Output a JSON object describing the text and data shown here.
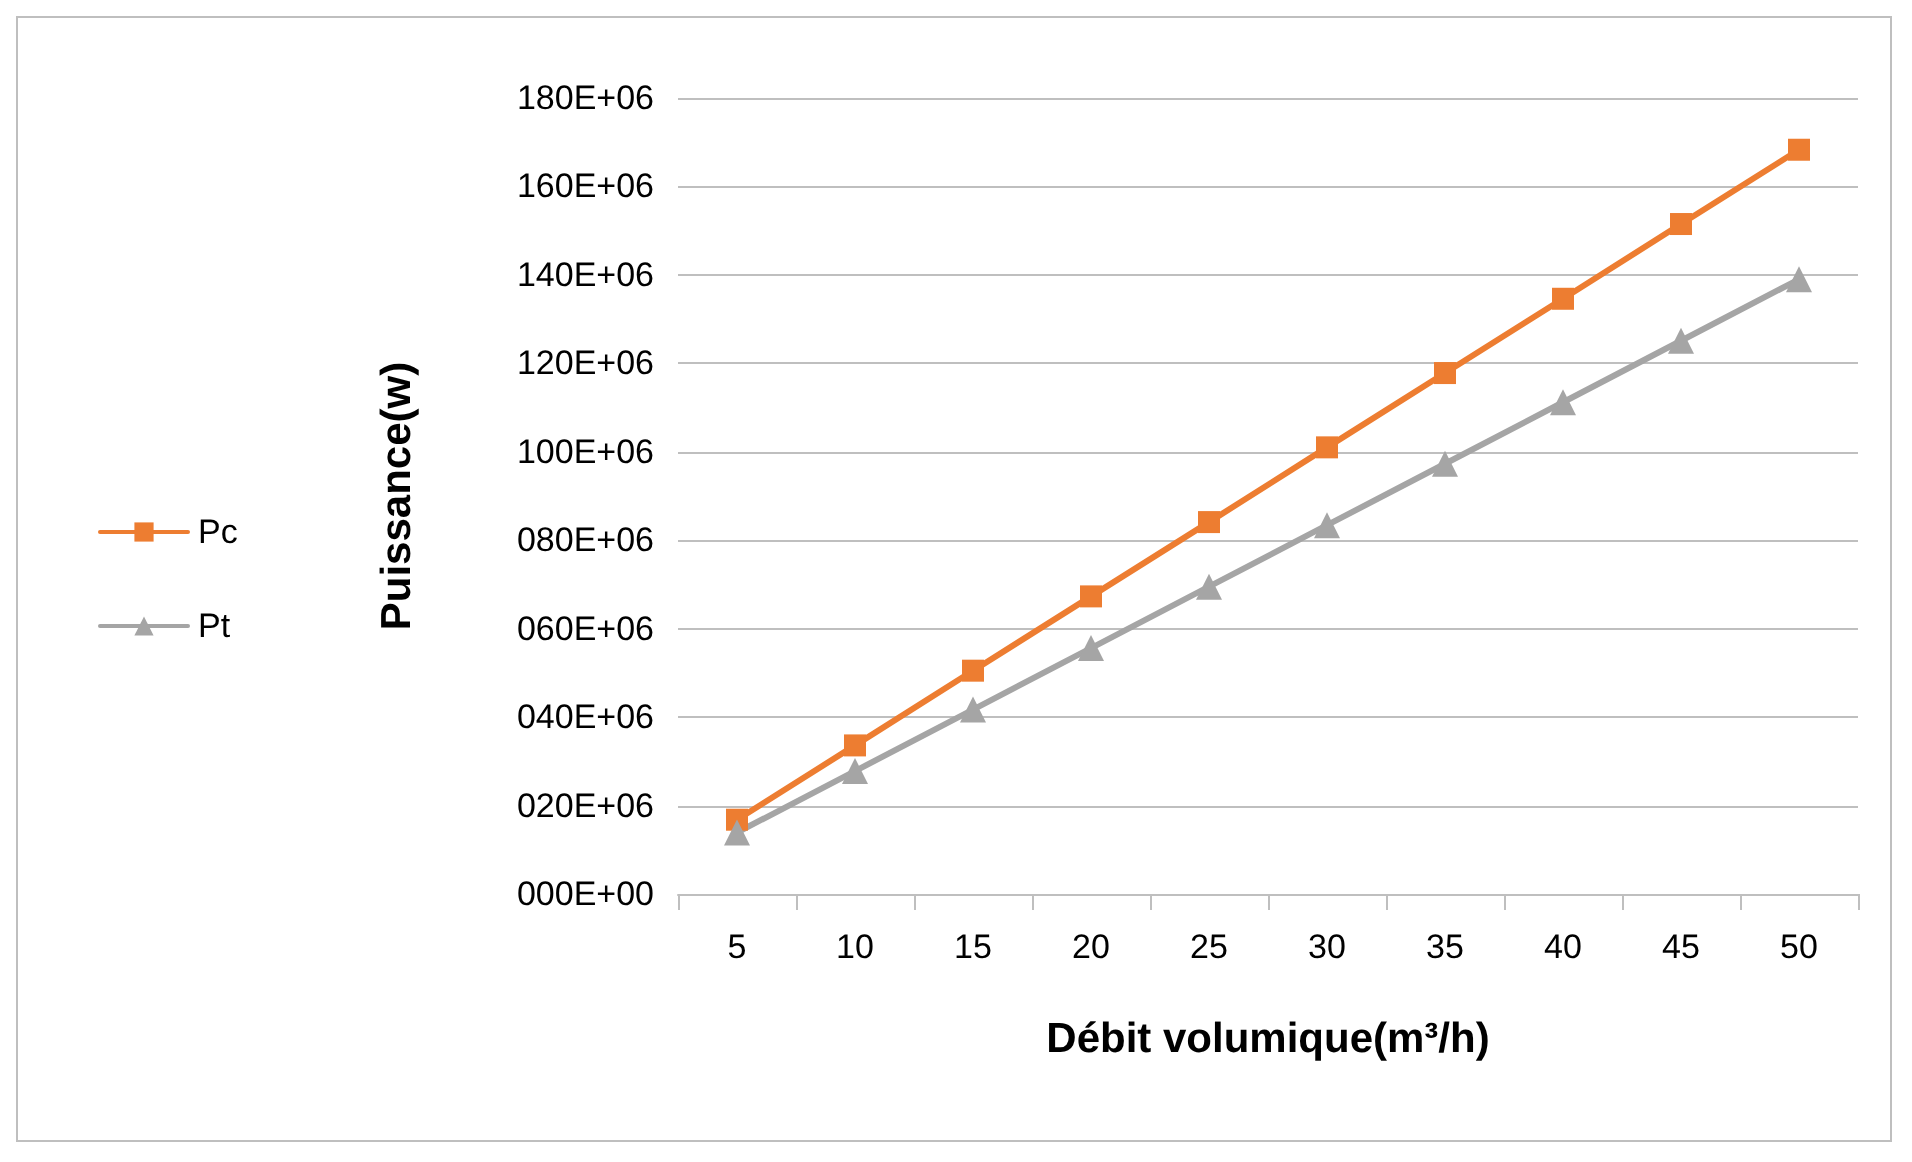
{
  "chart_data": {
    "type": "line",
    "xlabel": "Débit volumique(m³/h)",
    "ylabel": "Puissance(w)",
    "categories": [
      "5",
      "10",
      "15",
      "20",
      "25",
      "30",
      "35",
      "40",
      "45",
      "50"
    ],
    "series": [
      {
        "name": "Pc",
        "color": "#ed7d31",
        "marker": "square",
        "values": [
          16800000,
          33600000,
          50500000,
          67300000,
          84100000,
          101000000,
          117800000,
          134600000,
          151500000,
          168300000
        ]
      },
      {
        "name": "Pt",
        "color": "#a5a5a5",
        "marker": "triangle",
        "values": [
          13900000,
          27800000,
          41700000,
          55600000,
          69500000,
          83400000,
          97300000,
          111200000,
          125100000,
          139000000
        ]
      }
    ],
    "ylim": [
      0,
      180000000
    ],
    "yticks": [
      {
        "value": 0,
        "label": "000E+00"
      },
      {
        "value": 20000000,
        "label": "020E+06"
      },
      {
        "value": 40000000,
        "label": "040E+06"
      },
      {
        "value": 60000000,
        "label": "060E+06"
      },
      {
        "value": 80000000,
        "label": "080E+06"
      },
      {
        "value": 100000000,
        "label": "100E+06"
      },
      {
        "value": 120000000,
        "label": "120E+06"
      },
      {
        "value": 140000000,
        "label": "140E+06"
      },
      {
        "value": 160000000,
        "label": "160E+06"
      },
      {
        "value": 180000000,
        "label": "180E+06"
      }
    ],
    "grid": "y",
    "legend": "left",
    "line_style": "solid"
  }
}
